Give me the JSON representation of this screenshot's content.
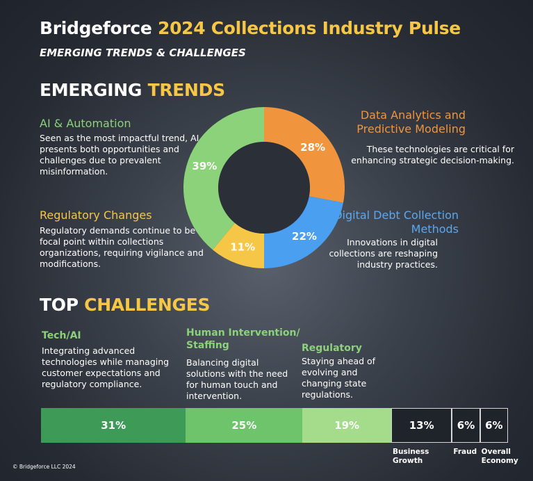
{
  "header": {
    "title_brand": "Bridgeforce",
    "title_rest": "2024 Collections Industry Pulse",
    "subtitle": "EMERGING TRENDS & CHALLENGES"
  },
  "trends_heading": {
    "white": "EMERGING",
    "gold": "TRENDS"
  },
  "challenges_heading": {
    "white": "TOP",
    "gold": "CHALLENGES"
  },
  "trends": {
    "ai": {
      "title": "AI & Automation",
      "desc": "Seen as the most impactful trend, AI presents both opportunities and challenges due to prevalent misinformation."
    },
    "regulatory": {
      "title": "Regulatory Changes",
      "desc": "Regulatory demands continue to be a focal point within collections organizations, requiring vigilance and modifications."
    },
    "data": {
      "title": "Data Analytics and Predictive Modeling",
      "desc": "These technologies are critical for enhancing strategic decision-making."
    },
    "digital": {
      "title": "Digital Debt Collection Methods",
      "desc": "Innovations in digital collections are reshaping industry practices."
    }
  },
  "challenges": {
    "tech": {
      "title": "Tech/AI",
      "desc": "Integrating advanced technologies while managing customer expectations and regulatory compliance."
    },
    "human": {
      "title": "Human Intervention/ Staffing",
      "desc": "Balancing digital solutions with the need for human touch and intervention."
    },
    "regulatory": {
      "title": "Regulatory",
      "desc": "Staying ahead of evolving and changing state regulations."
    }
  },
  "copyright": "© Bridgeforce LLC 2024",
  "chart_data": [
    {
      "type": "pie",
      "title": "",
      "categories": [
        "Data Analytics and Predictive Modeling",
        "Digital Debt Collection Methods",
        "Regulatory Changes",
        "AI & Automation"
      ],
      "values": [
        28,
        22,
        11,
        39
      ],
      "labels": [
        "28%",
        "22%",
        "11%",
        "39%"
      ],
      "colors": [
        "#f0953d",
        "#4a9ff0",
        "#f6c646",
        "#8bd27a"
      ]
    },
    {
      "type": "bar",
      "title": "",
      "categories": [
        "Tech/AI",
        "Human Intervention/ Staffing",
        "Regulatory",
        "Business Growth",
        "Fraud",
        "Overall Economy"
      ],
      "values": [
        31,
        25,
        19,
        13,
        6,
        6
      ],
      "labels": [
        "31%",
        "25%",
        "19%",
        "13%",
        "6%",
        "6%"
      ],
      "segment_labels": [
        "",
        "",
        "",
        "Business Growth",
        "Fraud",
        "Overall Economy"
      ],
      "colors": [
        "#3e9a57",
        "#6ec46a",
        "#a5dc8c",
        "#1f232a",
        "#1f232a",
        "#1f232a"
      ]
    }
  ]
}
